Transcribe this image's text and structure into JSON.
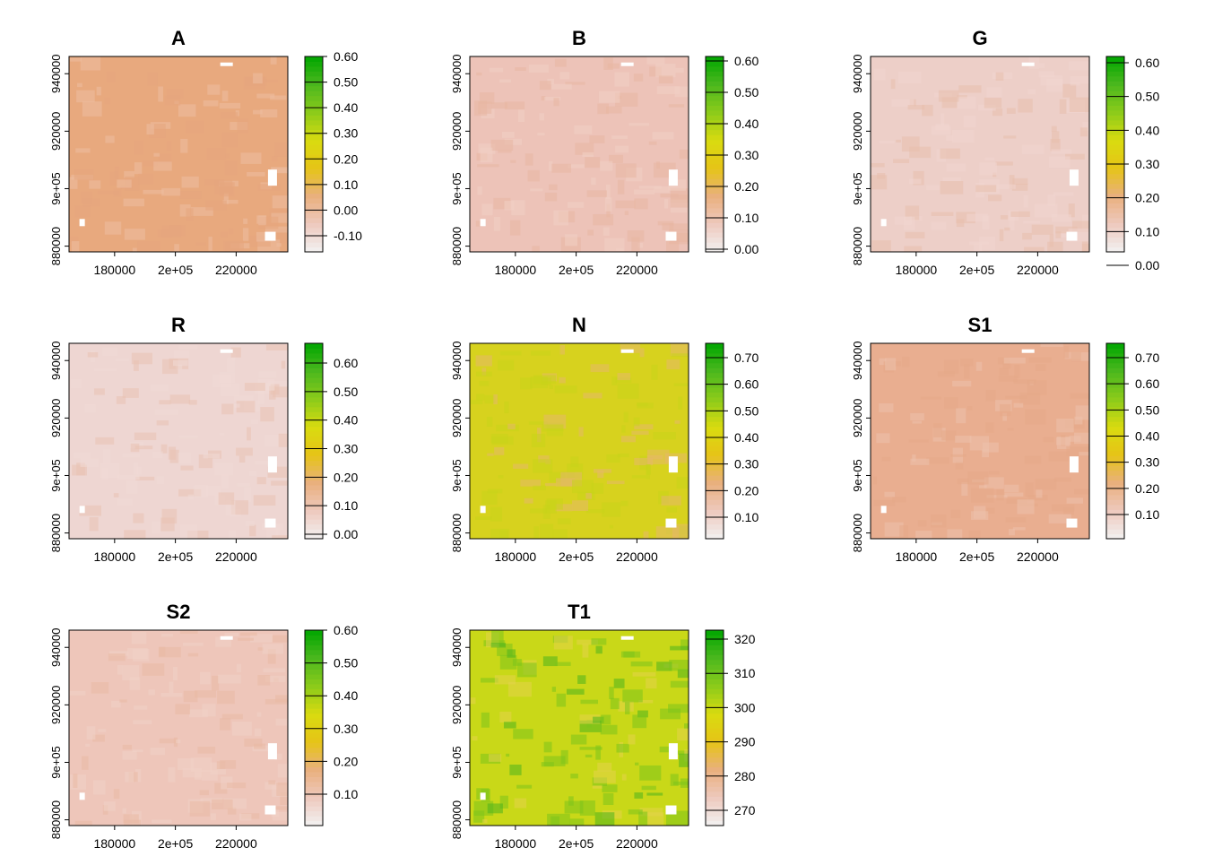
{
  "panels": [
    {
      "title": "A",
      "base_color": "#E8A97E",
      "x_ticks": [
        "180000",
        "2e+05",
        "220000"
      ],
      "y_ticks": [
        "880000",
        "9e+05",
        "920000",
        "940000"
      ],
      "legend_ticks": [
        "0.60",
        "0.50",
        "0.40",
        "0.30",
        "0.20",
        "0.10",
        "0.00",
        "-0.10"
      ]
    },
    {
      "title": "B",
      "base_color": "#EDC3B8",
      "x_ticks": [
        "180000",
        "2e+05",
        "220000"
      ],
      "y_ticks": [
        "880000",
        "9e+05",
        "920000",
        "940000"
      ],
      "legend_ticks": [
        "0.60",
        "0.50",
        "0.40",
        "0.30",
        "0.20",
        "0.10",
        "0.00"
      ]
    },
    {
      "title": "G",
      "base_color": "#EDCFC8",
      "x_ticks": [
        "180000",
        "2e+05",
        "220000"
      ],
      "y_ticks": [
        "880000",
        "9e+05",
        "920000",
        "940000"
      ],
      "legend_ticks": [
        "0.60",
        "0.50",
        "0.40",
        "0.30",
        "0.20",
        "0.10",
        "0.00"
      ]
    },
    {
      "title": "R",
      "base_color": "#EED6D2",
      "x_ticks": [
        "180000",
        "2e+05",
        "220000"
      ],
      "y_ticks": [
        "880000",
        "9e+05",
        "920000",
        "940000"
      ],
      "legend_ticks": [
        "0.60",
        "0.50",
        "0.40",
        "0.30",
        "0.20",
        "0.10",
        "0.00"
      ]
    },
    {
      "title": "N",
      "base_color": "#D7D21E",
      "x_ticks": [
        "180000",
        "2e+05",
        "220000"
      ],
      "y_ticks": [
        "880000",
        "9e+05",
        "920000",
        "940000"
      ],
      "legend_ticks": [
        "0.70",
        "0.60",
        "0.50",
        "0.40",
        "0.30",
        "0.20",
        "0.10"
      ]
    },
    {
      "title": "S1",
      "base_color": "#E9AE90",
      "x_ticks": [
        "180000",
        "2e+05",
        "220000"
      ],
      "y_ticks": [
        "880000",
        "9e+05",
        "920000",
        "940000"
      ],
      "legend_ticks": [
        "0.70",
        "0.60",
        "0.50",
        "0.40",
        "0.30",
        "0.20",
        "0.10"
      ]
    },
    {
      "title": "S2",
      "base_color": "#EEC6BA",
      "x_ticks": [
        "180000",
        "2e+05",
        "220000"
      ],
      "y_ticks": [
        "880000",
        "9e+05",
        "920000",
        "940000"
      ],
      "legend_ticks": [
        "0.60",
        "0.50",
        "0.40",
        "0.30",
        "0.20",
        "0.10"
      ]
    },
    {
      "title": "T1",
      "base_color": "#C9D818",
      "x_ticks": [
        "180000",
        "2e+05",
        "220000"
      ],
      "y_ticks": [
        "880000",
        "9e+05",
        "920000",
        "940000"
      ],
      "legend_ticks": [
        "320",
        "310",
        "300",
        "290",
        "280",
        "270"
      ]
    }
  ],
  "colors": {
    "ramp": [
      "#F2F2F2",
      "#EEC9BE",
      "#E9B07E",
      "#E6C417",
      "#D9DB10",
      "#8CCB1A",
      "#4CB81E",
      "#00A600"
    ]
  },
  "chart_data": [
    {
      "type": "heatmap",
      "title": "A",
      "xlim": [
        165000,
        237000
      ],
      "ylim": [
        878000,
        946000
      ],
      "xticks": [
        180000,
        200000,
        220000
      ],
      "yticks": [
        880000,
        900000,
        920000,
        940000
      ],
      "legend_range": [
        -0.15,
        0.62
      ],
      "legend_ticks": [
        -0.1,
        0.0,
        0.1,
        0.2,
        0.3,
        0.4,
        0.5,
        0.6
      ]
    },
    {
      "type": "heatmap",
      "title": "B",
      "xlim": [
        165000,
        237000
      ],
      "ylim": [
        878000,
        946000
      ],
      "xticks": [
        180000,
        200000,
        220000
      ],
      "yticks": [
        880000,
        900000,
        920000,
        940000
      ],
      "legend_range": [
        -0.05,
        0.62
      ],
      "legend_ticks": [
        0.0,
        0.1,
        0.2,
        0.3,
        0.4,
        0.5,
        0.6
      ]
    },
    {
      "type": "heatmap",
      "title": "G",
      "xlim": [
        165000,
        237000
      ],
      "ylim": [
        878000,
        946000
      ],
      "xticks": [
        180000,
        200000,
        220000
      ],
      "yticks": [
        880000,
        900000,
        920000,
        940000
      ],
      "legend_range": [
        -0.005,
        0.62
      ],
      "legend_ticks": [
        0.0,
        0.1,
        0.2,
        0.3,
        0.4,
        0.5,
        0.6
      ]
    },
    {
      "type": "heatmap",
      "title": "R",
      "xlim": [
        165000,
        237000
      ],
      "ylim": [
        878000,
        946000
      ],
      "xticks": [
        180000,
        200000,
        220000
      ],
      "yticks": [
        880000,
        900000,
        920000,
        940000
      ],
      "legend_range": [
        -0.005,
        0.66
      ],
      "legend_ticks": [
        0.0,
        0.1,
        0.2,
        0.3,
        0.4,
        0.5,
        0.6
      ]
    },
    {
      "type": "heatmap",
      "title": "N",
      "xlim": [
        165000,
        237000
      ],
      "ylim": [
        878000,
        946000
      ],
      "xticks": [
        180000,
        200000,
        220000
      ],
      "yticks": [
        880000,
        900000,
        920000,
        940000
      ],
      "legend_range": [
        0.02,
        0.75
      ],
      "legend_ticks": [
        0.1,
        0.2,
        0.3,
        0.4,
        0.5,
        0.6,
        0.7
      ]
    },
    {
      "type": "heatmap",
      "title": "S1",
      "xlim": [
        165000,
        237000
      ],
      "ylim": [
        878000,
        946000
      ],
      "xticks": [
        180000,
        200000,
        220000
      ],
      "yticks": [
        880000,
        900000,
        920000,
        940000
      ],
      "legend_range": [
        0.0,
        0.75
      ],
      "legend_ticks": [
        0.1,
        0.2,
        0.3,
        0.4,
        0.5,
        0.6,
        0.7
      ]
    },
    {
      "type": "heatmap",
      "title": "S2",
      "xlim": [
        165000,
        237000
      ],
      "ylim": [
        878000,
        946000
      ],
      "xticks": [
        180000,
        200000,
        220000
      ],
      "yticks": [
        880000,
        900000,
        920000,
        940000
      ],
      "legend_range": [
        0.0,
        0.6
      ],
      "legend_ticks": [
        0.1,
        0.2,
        0.3,
        0.4,
        0.5,
        0.6
      ]
    },
    {
      "type": "heatmap",
      "title": "T1",
      "xlim": [
        165000,
        237000
      ],
      "ylim": [
        878000,
        946000
      ],
      "xticks": [
        180000,
        200000,
        220000
      ],
      "yticks": [
        880000,
        900000,
        920000,
        940000
      ],
      "legend_range": [
        265,
        323
      ],
      "legend_ticks": [
        270,
        280,
        290,
        300,
        310,
        320
      ]
    }
  ]
}
